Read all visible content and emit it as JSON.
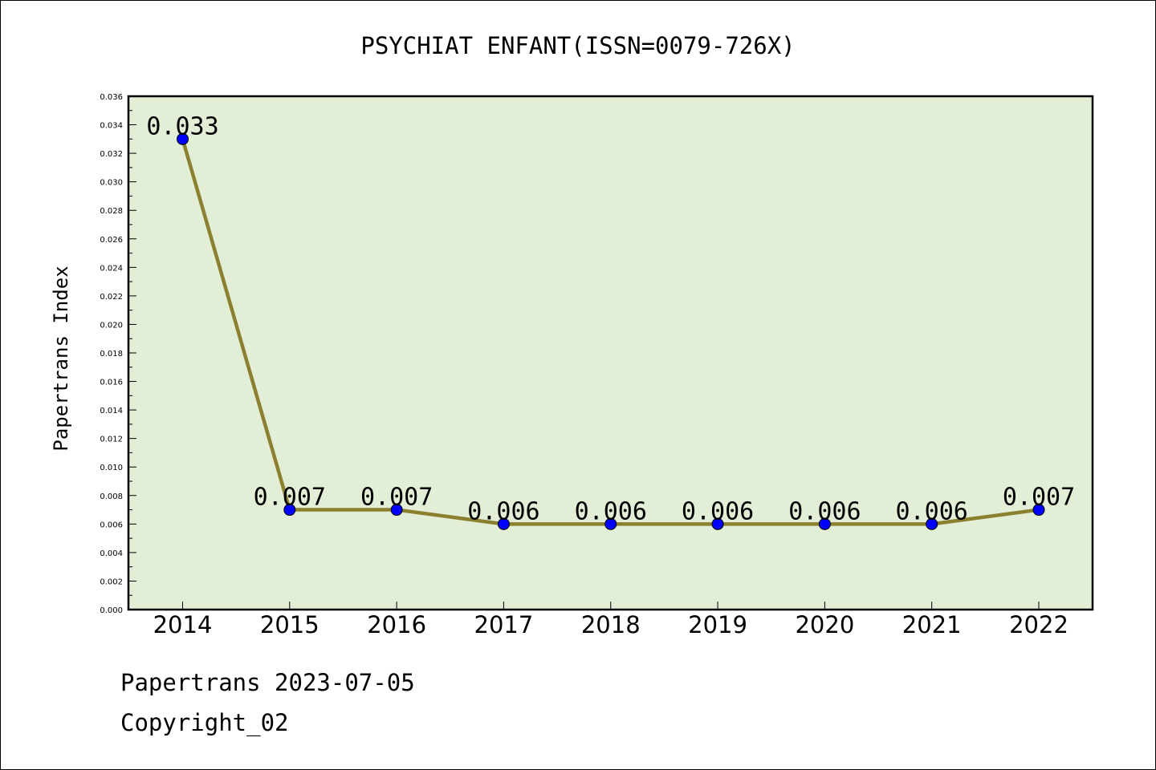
{
  "chart_data": {
    "type": "line",
    "title": "PSYCHIAT ENFANT(ISSN=0079-726X)",
    "xlabel": "",
    "ylabel": "Papertrans Index",
    "categories": [
      "2014",
      "2015",
      "2016",
      "2017",
      "2018",
      "2019",
      "2020",
      "2021",
      "2022"
    ],
    "series": [
      {
        "values": [
          0.033,
          0.007,
          0.007,
          0.006,
          0.006,
          0.006,
          0.006,
          0.006,
          0.007
        ],
        "labels": [
          "0.033",
          "0.007",
          "0.007",
          "0.006",
          "0.006",
          "0.006",
          "0.006",
          "0.006",
          "0.007"
        ]
      }
    ],
    "ylim": [
      0.0,
      0.036
    ],
    "yticks": [
      "0.000",
      "0.002",
      "0.004",
      "0.006",
      "0.008",
      "0.010",
      "0.012",
      "0.014",
      "0.016",
      "0.018",
      "0.020",
      "0.022",
      "0.024",
      "0.026",
      "0.028",
      "0.030",
      "0.032",
      "0.034",
      "0.036"
    ],
    "grid": false,
    "legend": "none"
  },
  "colors": {
    "plot_background": "#e2efd6",
    "line": "#8b8030",
    "marker": "#0000ff"
  },
  "footer": {
    "line1": "Papertrans 2023-07-05",
    "line2": "Copyright_02"
  }
}
